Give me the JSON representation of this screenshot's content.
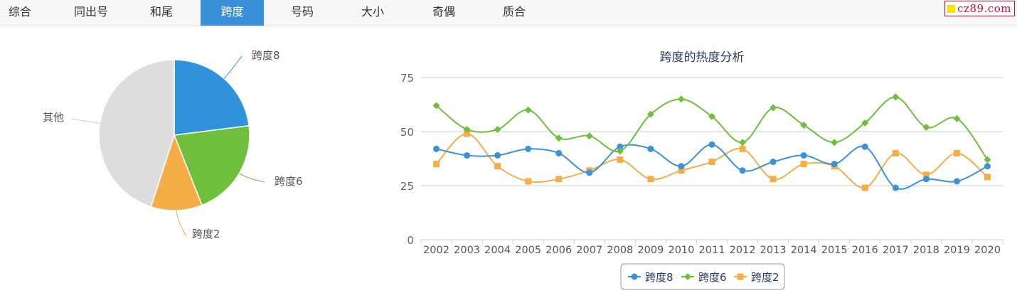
{
  "tabs": [
    {
      "label": "综合"
    },
    {
      "label": "同出号"
    },
    {
      "label": "和尾"
    },
    {
      "label": "跨度",
      "active": true
    },
    {
      "label": "号码"
    },
    {
      "label": "大小"
    },
    {
      "label": "奇偶"
    },
    {
      "label": "质合"
    }
  ],
  "brand": {
    "text": "cz89.com",
    "square_color": "#f5e400",
    "color": "#c8102e"
  },
  "colors": {
    "tab_active": "#3a8fd9",
    "span8": "#3a93d8",
    "span6": "#6dbf3c",
    "span2": "#f5ad47",
    "other": "#dddddd"
  },
  "pie": {
    "type": "pie",
    "slices": [
      {
        "name": "跨度8",
        "value": 23,
        "color": "#2f92db"
      },
      {
        "name": "跨度6",
        "value": 21,
        "color": "#6dbf3c"
      },
      {
        "name": "跨度2",
        "value": 11,
        "color": "#f5ad47"
      },
      {
        "name": "其他",
        "value": 45,
        "color": "#dddddd"
      }
    ]
  },
  "chart_data": {
    "type": "line",
    "title": "跨度的热度分析",
    "x": [
      "2002",
      "2003",
      "2004",
      "2005",
      "2006",
      "2007",
      "2008",
      "2009",
      "2010",
      "2011",
      "2012",
      "2013",
      "2014",
      "2015",
      "2016",
      "2017",
      "2018",
      "2019",
      "2020"
    ],
    "ylim": [
      0,
      75
    ],
    "yticks": [
      "0",
      "25",
      "50",
      "75"
    ],
    "grid": true,
    "legend": "bottom-center",
    "series": [
      {
        "name": "跨度8",
        "marker": "circle",
        "color": "#3a93d8",
        "values": [
          42,
          39,
          39,
          42,
          40,
          31,
          43,
          42,
          34,
          44,
          32,
          36,
          39,
          35,
          43,
          24,
          28,
          27,
          34
        ]
      },
      {
        "name": "跨度6",
        "marker": "diamond",
        "color": "#6dbf3c",
        "values": [
          62,
          51,
          51,
          60,
          47,
          48,
          41,
          58,
          65,
          57,
          45,
          61,
          53,
          45,
          54,
          66,
          52,
          56,
          37
        ]
      },
      {
        "name": "跨度2",
        "marker": "square",
        "color": "#f5ad47",
        "values": [
          35,
          49,
          34,
          27,
          28,
          32,
          37,
          28,
          32,
          36,
          42,
          28,
          35,
          34,
          24,
          40,
          30,
          40,
          29
        ]
      }
    ]
  }
}
